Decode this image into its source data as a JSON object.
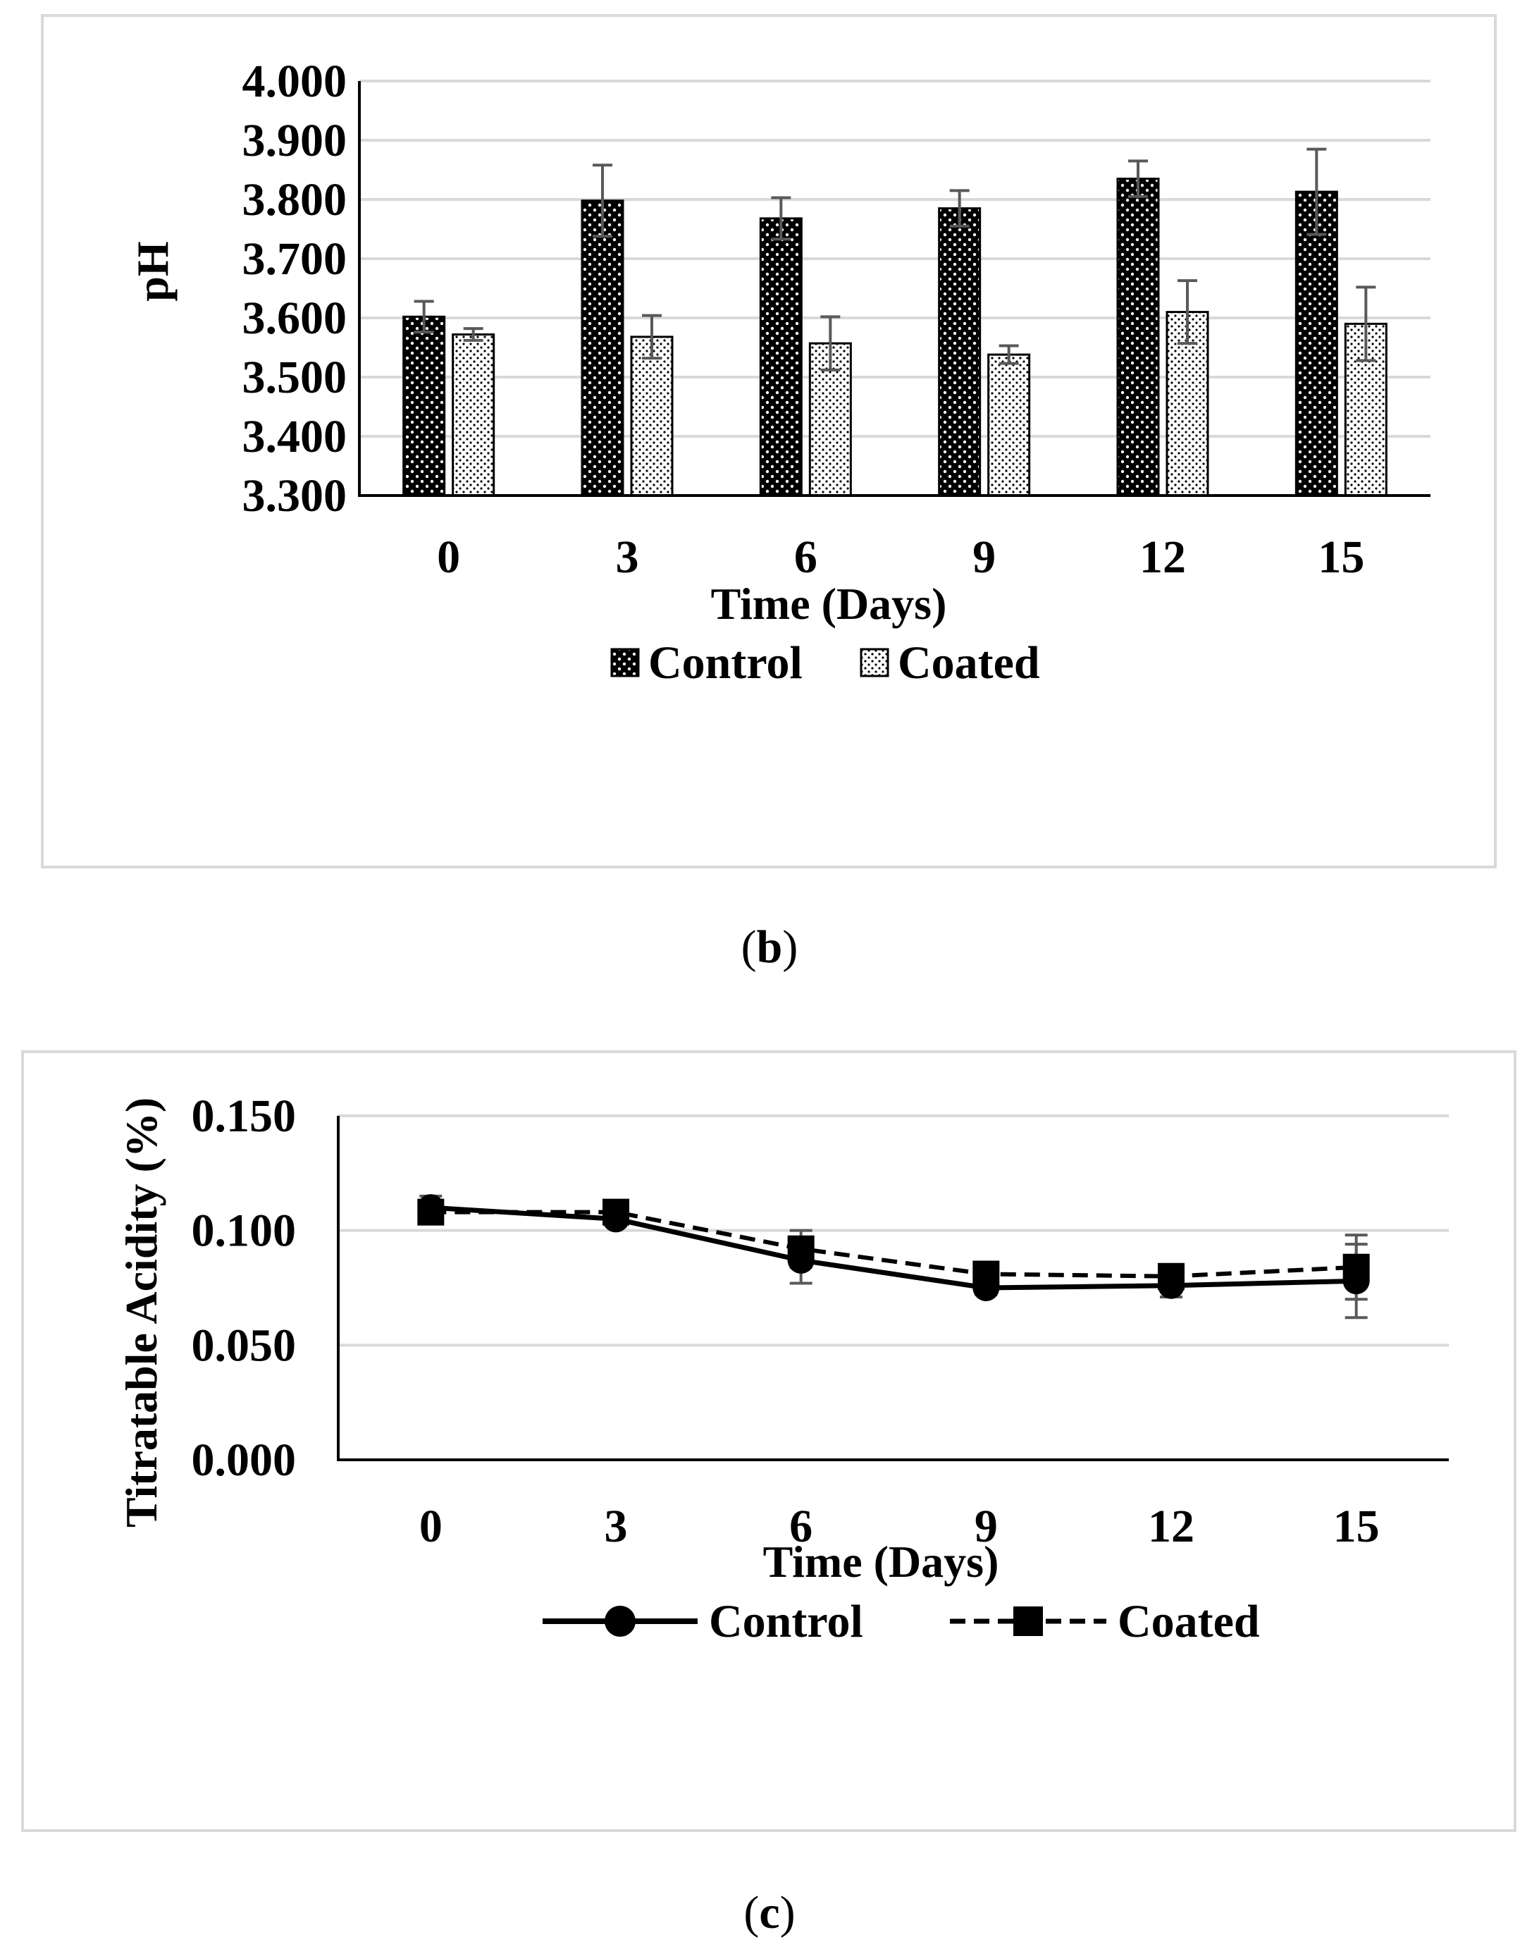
{
  "chart_data": [
    {
      "type": "bar",
      "panel_label": {
        "open": "(",
        "letter": "b",
        "close": ")"
      },
      "ylabel": "pH",
      "xlabel": "Time (Days)",
      "categories": [
        "0",
        "3",
        "6",
        "9",
        "12",
        "15"
      ],
      "ylim": [
        3.3,
        4.0
      ],
      "yticks": [
        "3.300",
        "3.400",
        "3.500",
        "3.600",
        "3.700",
        "3.800",
        "3.900",
        "4.000"
      ],
      "ytick_values": [
        3.3,
        3.4,
        3.5,
        3.6,
        3.7,
        3.8,
        3.9,
        4.0
      ],
      "grid": true,
      "legend_position": "bottom",
      "series": [
        {
          "name": "Control",
          "values": [
            3.602,
            3.798,
            3.768,
            3.785,
            3.835,
            3.813
          ],
          "error": [
            0.026,
            0.06,
            0.035,
            0.03,
            0.03,
            0.072
          ]
        },
        {
          "name": "Coated",
          "values": [
            3.572,
            3.568,
            3.557,
            3.538,
            3.61,
            3.59
          ],
          "error": [
            0.01,
            0.036,
            0.045,
            0.015,
            0.053,
            0.062
          ]
        }
      ]
    },
    {
      "type": "line",
      "panel_label": {
        "open": "(",
        "letter": "c",
        "close": ")"
      },
      "ylabel": "Titratable Acidity (%)",
      "xlabel": "Time (Days)",
      "categories": [
        "0",
        "3",
        "6",
        "9",
        "12",
        "15"
      ],
      "ylim": [
        0.0,
        0.15
      ],
      "yticks": [
        "0.000",
        "0.050",
        "0.100",
        "0.150"
      ],
      "ytick_values": [
        0.0,
        0.05,
        0.1,
        0.15
      ],
      "grid": true,
      "legend_position": "bottom",
      "series": [
        {
          "name": "Control",
          "values": [
            0.11,
            0.105,
            0.087,
            0.075,
            0.076,
            0.078
          ],
          "error": [
            0.005,
            0.003,
            0.01,
            0.003,
            0.005,
            0.016
          ]
        },
        {
          "name": "Coated",
          "values": [
            0.108,
            0.108,
            0.092,
            0.081,
            0.08,
            0.084
          ],
          "error": [
            0.004,
            0.003,
            0.008,
            0.004,
            0.004,
            0.014
          ]
        }
      ]
    }
  ]
}
